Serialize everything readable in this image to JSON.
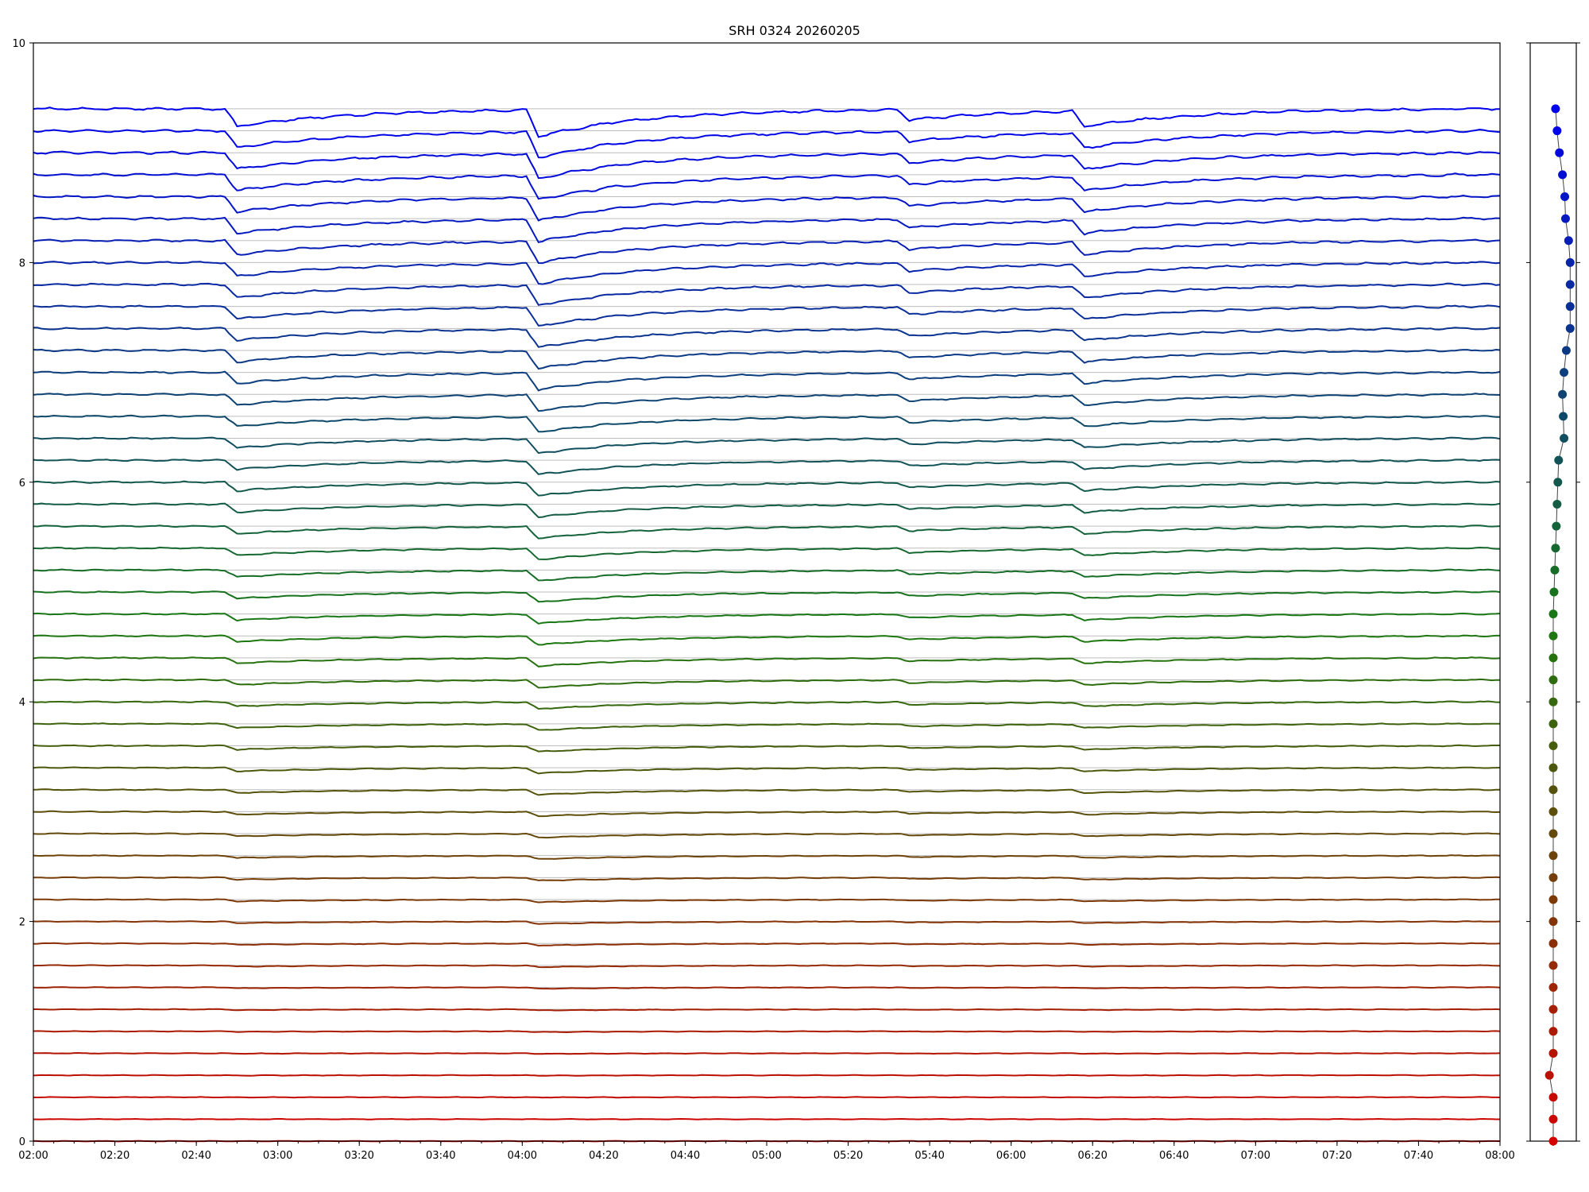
{
  "chart_data": [
    {
      "type": "line",
      "title": "SRH 0324 20260205",
      "xlabel": "",
      "ylabel": "",
      "xlim": [
        "02:00",
        "08:00"
      ],
      "ylim": [
        0,
        10
      ],
      "grid": true,
      "x_ticks": [
        "02:00",
        "02:20",
        "02:40",
        "03:00",
        "03:20",
        "03:40",
        "04:00",
        "04:20",
        "04:40",
        "05:00",
        "05:20",
        "05:40",
        "06:00",
        "06:20",
        "06:40",
        "07:00",
        "07:20",
        "07:40",
        "08:00"
      ],
      "y_ticks": [
        0,
        2,
        4,
        6,
        8,
        10
      ],
      "series_count": 48,
      "series_baselines": [
        0.0,
        0.2,
        0.4,
        0.6,
        0.8,
        1.0,
        1.2,
        1.4,
        1.6,
        1.8,
        2.0,
        2.2,
        2.4,
        2.6,
        2.8,
        3.0,
        3.2,
        3.4,
        3.6,
        3.8,
        4.0,
        4.2,
        4.4,
        4.6,
        4.8,
        5.0,
        5.2,
        5.4,
        5.6,
        5.8,
        6.0,
        6.2,
        6.4,
        6.6,
        6.8,
        7.0,
        7.2,
        7.4,
        7.6,
        7.8,
        8.0,
        8.2,
        8.4,
        8.6,
        8.8,
        9.0,
        9.2,
        9.4
      ],
      "series_color_low": "#d40000",
      "series_color_mid": "#1a7a10",
      "series_color_high": "#0000ee",
      "events": [
        {
          "time": "02:48",
          "depth": 0.16
        },
        {
          "time": "04:02",
          "depth": 0.24
        },
        {
          "time": "05:33",
          "depth": 0.1
        },
        {
          "time": "06:16",
          "depth": 0.14
        }
      ]
    },
    {
      "type": "scatter",
      "title": "",
      "y": [
        0.0,
        0.2,
        0.4,
        0.6,
        0.8,
        1.0,
        1.2,
        1.4,
        1.6,
        1.8,
        2.0,
        2.2,
        2.4,
        2.6,
        2.8,
        3.0,
        3.2,
        3.4,
        3.6,
        3.8,
        4.0,
        4.2,
        4.4,
        4.6,
        4.8,
        5.0,
        5.2,
        5.4,
        5.6,
        5.8,
        6.0,
        6.2,
        6.4,
        6.6,
        6.8,
        7.0,
        7.2,
        7.4,
        7.6,
        7.8,
        8.0,
        8.2,
        8.4,
        8.6,
        8.8,
        9.0,
        9.2,
        9.4
      ],
      "x": [
        0.0,
        0.0,
        0.0,
        -0.05,
        0.0,
        0.0,
        0.0,
        0.0,
        0.0,
        0.0,
        0.0,
        0.0,
        0.0,
        0.0,
        0.0,
        0.0,
        0.0,
        0.0,
        0.0,
        0.0,
        0.0,
        0.0,
        0.0,
        0.0,
        0.0,
        0.01,
        0.02,
        0.03,
        0.04,
        0.05,
        0.06,
        0.07,
        0.14,
        0.13,
        0.12,
        0.14,
        0.17,
        0.22,
        0.22,
        0.22,
        0.22,
        0.2,
        0.16,
        0.15,
        0.12,
        0.08,
        0.05,
        0.03
      ],
      "xlim": [
        -0.3,
        0.3
      ],
      "ylim": [
        0,
        10
      ],
      "grid": false
    }
  ]
}
